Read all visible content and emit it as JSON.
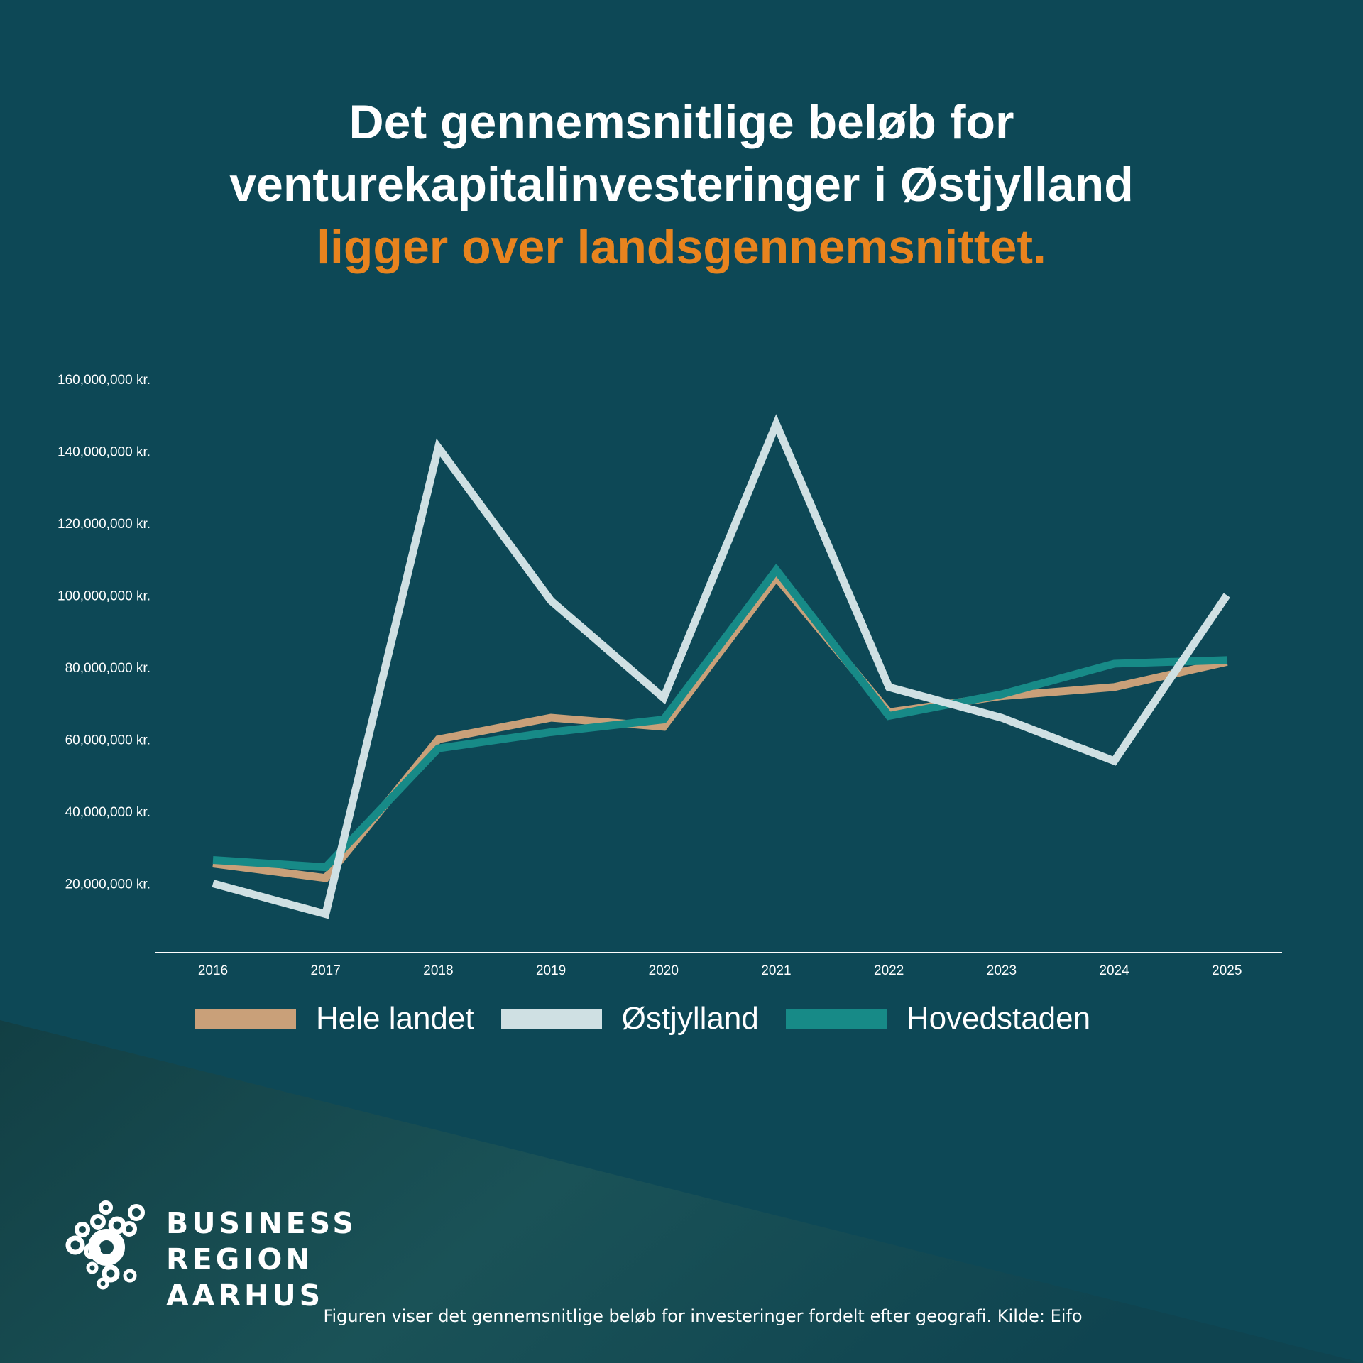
{
  "title": {
    "line1": "Det gennemsnitlige beløb for",
    "line2": "venturekapitalinvesteringer i Østjylland",
    "line3": "ligger over landsgennemsnittet."
  },
  "colors": {
    "background": "#0d4856",
    "highlight": "#e8831e",
    "hele_landet": "#c9a079",
    "ostjylland": "#cfe0e3",
    "hovedstaden": "#178a87"
  },
  "chart_data": {
    "type": "line",
    "x": [
      "2016",
      "2017",
      "2018",
      "2019",
      "2020",
      "2021",
      "2022",
      "2023",
      "2024",
      "2025"
    ],
    "y_ticks": [
      20000000,
      40000000,
      60000000,
      80000000,
      100000000,
      120000000,
      140000000,
      160000000
    ],
    "y_tick_labels": [
      "20,000,000 kr.",
      "40,000,000 kr.",
      "60,000,000 kr.",
      "80,000,000 kr.",
      "100,000,000 kr.",
      "120,000,000 kr.",
      "140,000,000 kr.",
      "160,000,000 kr."
    ],
    "ylim": [
      0,
      160000000
    ],
    "series": [
      {
        "name": "Hele landet",
        "color": "#c9a079",
        "values": [
          25500000,
          21500000,
          60000000,
          66000000,
          63500000,
          105000000,
          67500000,
          72000000,
          74500000,
          81500000
        ]
      },
      {
        "name": "Hovedstaden",
        "color": "#178a87",
        "values": [
          26500000,
          24500000,
          57500000,
          62000000,
          65500000,
          107000000,
          66500000,
          72500000,
          81000000,
          82000000
        ]
      },
      {
        "name": "Østjylland",
        "color": "#cfe0e3",
        "values": [
          20000000,
          11500000,
          141000000,
          98500000,
          71500000,
          147500000,
          74500000,
          66000000,
          54000000,
          100000000
        ]
      }
    ],
    "legend": [
      "Hele landet",
      "Østjylland",
      "Hovedstaden"
    ],
    "legend_position": "bottom",
    "grid": false,
    "xlabel": "",
    "ylabel": ""
  },
  "logo": {
    "line1": "BUSINESS",
    "line2": "REGION",
    "line3": "AARHUS"
  },
  "footnote": "Figuren viser det gennemsnitlige beløb for investeringer fordelt efter geografi. Kilde: Eifo"
}
